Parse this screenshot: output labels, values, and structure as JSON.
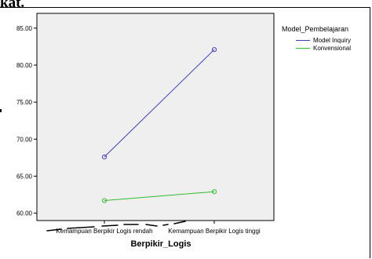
{
  "page_heading": "kat.",
  "chart_data": {
    "type": "line",
    "title": "",
    "xlabel": "Berpikir_Logis",
    "ylabel": "",
    "categories": [
      "Kemampuan Berpikir Logis rendah",
      "Kemampuan Berpikir Logis  tinggi"
    ],
    "ylim": [
      59.0,
      87.0
    ],
    "yticks": [
      "60.00",
      "65.00",
      "70.00",
      "75.00",
      "80.00",
      "85.00"
    ],
    "grid": false,
    "legend_placement": "right",
    "legend_title": "Model_Pembelajaran",
    "series": [
      {
        "name": "Model Inquiry",
        "color": "#3f3fbf",
        "values": [
          67.6,
          82.1
        ]
      },
      {
        "name": "Konvensional",
        "color": "#2ebd2e",
        "values": [
          61.7,
          62.9
        ]
      }
    ],
    "plot_background": "#efefef"
  }
}
